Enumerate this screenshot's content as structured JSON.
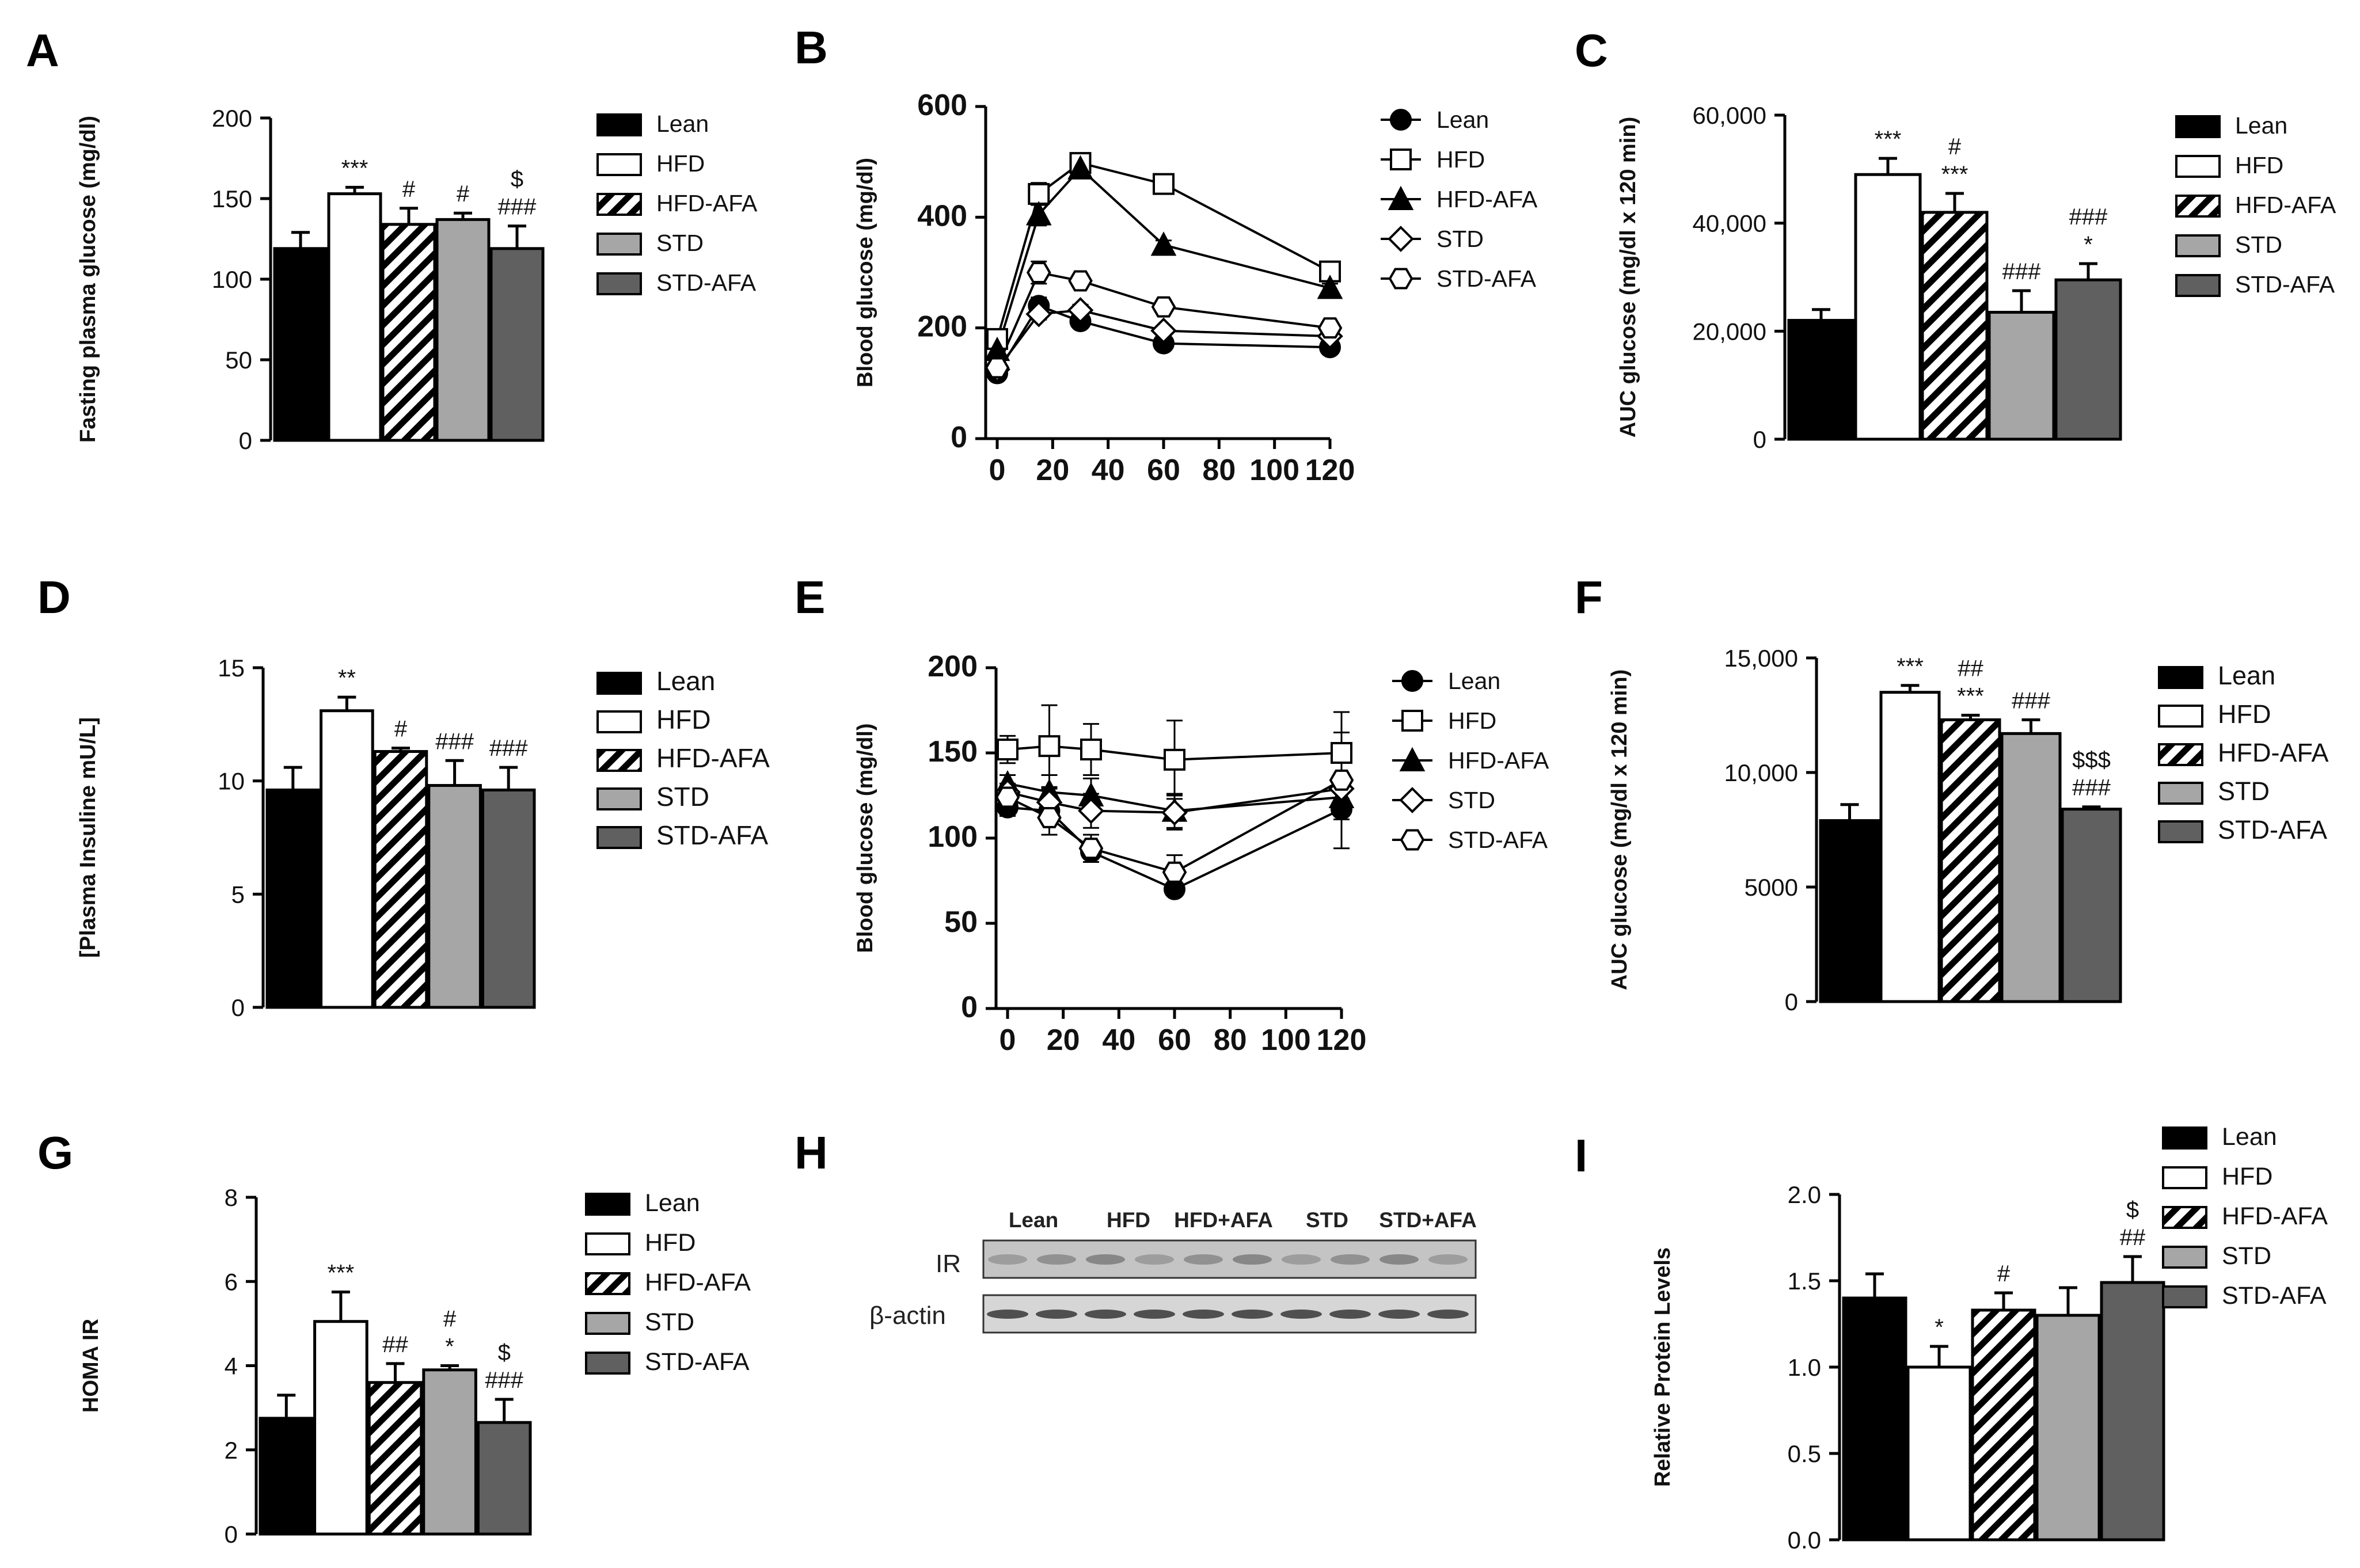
{
  "colors": {
    "Lean": "#000000",
    "HFD": "#ffffff",
    "HFD-AFA": "hatch",
    "STD": "#a6a6a6",
    "STD-AFA": "#606060"
  },
  "legend_bar": [
    "Lean",
    "HFD",
    "HFD-AFA",
    "STD",
    "STD-AFA"
  ],
  "chart_data": [
    {
      "panel": "A",
      "type": "bar",
      "ylabel": "Fasting plasma glucose (mg/dl)",
      "ylim": [
        0,
        200
      ],
      "yticks": [
        0,
        50,
        100,
        150,
        200
      ],
      "yticklabels": [
        "0",
        "50",
        "100",
        "150",
        "200"
      ],
      "categories": [
        "Lean",
        "HFD",
        "HFD-AFA",
        "STD",
        "STD-AFA"
      ],
      "values": [
        119,
        153,
        134,
        137,
        119
      ],
      "errors": [
        10,
        4,
        10,
        4,
        14
      ],
      "annotations": [
        [],
        [
          "***"
        ],
        [
          "#"
        ],
        [
          "#"
        ],
        [
          "$",
          "###"
        ]
      ]
    },
    {
      "panel": "B",
      "type": "line",
      "ylabel": "Blood glucose (mg/dl)",
      "ylim": [
        0,
        600
      ],
      "yticks": [
        0,
        200,
        400,
        600
      ],
      "yticklabels": [
        "0",
        "200",
        "400",
        "600"
      ],
      "xlim": [
        0,
        120
      ],
      "xticks": [
        0,
        20,
        40,
        60,
        80,
        100,
        120
      ],
      "series": [
        {
          "name": "Lean",
          "marker": "circle",
          "fill": "black",
          "x": [
            0,
            15,
            30,
            60,
            120
          ],
          "y": [
            118,
            240,
            212,
            172,
            165
          ],
          "err": [
            10,
            15,
            10,
            6,
            6
          ]
        },
        {
          "name": "HFD",
          "marker": "square",
          "fill": "white",
          "x": [
            0,
            15,
            30,
            60,
            120
          ],
          "y": [
            180,
            442,
            498,
            460,
            302
          ],
          "err": [
            8,
            20,
            10,
            10,
            10
          ]
        },
        {
          "name": "HFD-AFA",
          "marker": "triangle",
          "fill": "black",
          "x": [
            0,
            15,
            30,
            60,
            120
          ],
          "y": [
            160,
            405,
            488,
            350,
            272
          ],
          "err": [
            8,
            20,
            10,
            8,
            8
          ]
        },
        {
          "name": "STD",
          "marker": "diamond",
          "fill": "white",
          "x": [
            0,
            15,
            30,
            60,
            120
          ],
          "y": [
            125,
            225,
            232,
            195,
            185
          ],
          "err": [
            8,
            10,
            10,
            6,
            6
          ]
        },
        {
          "name": "STD-AFA",
          "marker": "hexagon",
          "fill": "white",
          "x": [
            0,
            15,
            30,
            60,
            120
          ],
          "y": [
            128,
            300,
            285,
            238,
            200
          ],
          "err": [
            8,
            20,
            10,
            8,
            6
          ]
        }
      ]
    },
    {
      "panel": "C",
      "type": "bar",
      "ylabel": "AUC glucose (mg/dl x 120 min)",
      "ylim": [
        0,
        60000
      ],
      "yticks": [
        0,
        20000,
        40000,
        60000
      ],
      "yticklabels": [
        "0",
        "20,000",
        "40,000",
        "60,000"
      ],
      "categories": [
        "Lean",
        "HFD",
        "HFD-AFA",
        "STD",
        "STD-AFA"
      ],
      "values": [
        22000,
        49000,
        42000,
        23500,
        29500
      ],
      "errors": [
        2000,
        3000,
        3500,
        4000,
        3000
      ],
      "annotations": [
        [],
        [
          "***"
        ],
        [
          "#",
          "***"
        ],
        [
          "###"
        ],
        [
          "###",
          "*"
        ]
      ]
    },
    {
      "panel": "D",
      "type": "bar",
      "ylabel": "[Plasma Insuline mU/L]",
      "ylim": [
        0,
        15
      ],
      "yticks": [
        0,
        5,
        10,
        15
      ],
      "yticklabels": [
        "0",
        "5",
        "10",
        "15"
      ],
      "categories": [
        "Lean",
        "HFD",
        "HFD-AFA",
        "STD",
        "STD-AFA"
      ],
      "values": [
        9.6,
        13.1,
        11.3,
        9.8,
        9.6
      ],
      "errors": [
        1.0,
        0.6,
        0.15,
        1.1,
        1.0
      ],
      "annotations": [
        [],
        [
          "**"
        ],
        [
          "#"
        ],
        [
          "###"
        ],
        [
          "###"
        ]
      ]
    },
    {
      "panel": "E",
      "type": "line",
      "ylabel": "Blood glucose (mg/dl)",
      "ylim": [
        0,
        200
      ],
      "yticks": [
        0,
        50,
        100,
        150,
        200
      ],
      "yticklabels": [
        "0",
        "50",
        "100",
        "150",
        "200"
      ],
      "xlim": [
        0,
        120
      ],
      "xticks": [
        0,
        20,
        40,
        60,
        80,
        100,
        120
      ],
      "series": [
        {
          "name": "Lean",
          "marker": "circle",
          "fill": "black",
          "x": [
            0,
            15,
            30,
            60,
            120
          ],
          "y": [
            118,
            116,
            92,
            70,
            117
          ],
          "err": [
            5,
            6,
            6,
            4,
            6
          ]
        },
        {
          "name": "HFD",
          "marker": "square",
          "fill": "white",
          "x": [
            0,
            15,
            30,
            60,
            120
          ],
          "y": [
            152,
            154,
            152,
            146,
            150
          ],
          "err": [
            8,
            24,
            15,
            23,
            12
          ]
        },
        {
          "name": "HFD-AFA",
          "marker": "triangle",
          "fill": "black",
          "x": [
            0,
            15,
            30,
            60,
            120
          ],
          "y": [
            132,
            127,
            125,
            116,
            124
          ],
          "err": [
            5,
            10,
            10,
            10,
            8
          ]
        },
        {
          "name": "STD",
          "marker": "diamond",
          "fill": "white",
          "x": [
            0,
            15,
            30,
            60,
            120
          ],
          "y": [
            127,
            121,
            116,
            115,
            129
          ],
          "err": [
            5,
            8,
            10,
            10,
            7
          ]
        },
        {
          "name": "STD-AFA",
          "marker": "hexagon",
          "fill": "white",
          "x": [
            0,
            15,
            30,
            60,
            120
          ],
          "y": [
            124,
            112,
            94,
            80,
            134
          ],
          "err": [
            5,
            10,
            8,
            10,
            40
          ]
        }
      ]
    },
    {
      "panel": "F",
      "type": "bar",
      "ylabel": "AUC glucose (mg/dl x 120 min)",
      "ylim": [
        0,
        15000
      ],
      "yticks": [
        0,
        5000,
        10000,
        15000
      ],
      "yticklabels": [
        "0",
        "5000",
        "10,000",
        "15,000"
      ],
      "categories": [
        "Lean",
        "HFD",
        "HFD-AFA",
        "STD",
        "STD-AFA"
      ],
      "values": [
        7900,
        13500,
        12300,
        11700,
        8400
      ],
      "errors": [
        700,
        300,
        200,
        600,
        100
      ],
      "annotations": [
        [],
        [
          "***"
        ],
        [
          "##",
          "***"
        ],
        [
          "###"
        ],
        [
          "$$$",
          "###"
        ]
      ]
    },
    {
      "panel": "G",
      "type": "bar",
      "ylabel": "HOMA IR",
      "ylim": [
        0,
        8
      ],
      "yticks": [
        0,
        2,
        4,
        6,
        8
      ],
      "yticklabels": [
        "0",
        "2",
        "4",
        "6",
        "8"
      ],
      "categories": [
        "Lean",
        "HFD",
        "HFD-AFA",
        "STD",
        "STD-AFA"
      ],
      "values": [
        2.75,
        5.05,
        3.6,
        3.9,
        2.65
      ],
      "errors": [
        0.55,
        0.7,
        0.45,
        0.1,
        0.55
      ],
      "annotations": [
        [],
        [
          "***"
        ],
        [
          "##"
        ],
        [
          "#",
          "*"
        ],
        [
          "$",
          "###"
        ]
      ]
    },
    {
      "panel": "I",
      "type": "bar",
      "ylabel": "Relative Protein Levels",
      "ylim": [
        0,
        2.0
      ],
      "yticks": [
        0,
        0.5,
        1.0,
        1.5,
        2.0
      ],
      "yticklabels": [
        "0.0",
        "0.5",
        "1.0",
        "1.5",
        "2.0"
      ],
      "categories": [
        "Lean",
        "HFD",
        "HFD-AFA",
        "STD",
        "STD-AFA"
      ],
      "values": [
        1.4,
        1.0,
        1.33,
        1.3,
        1.49
      ],
      "errors": [
        0.14,
        0.12,
        0.1,
        0.16,
        0.15
      ],
      "annotations": [
        [],
        [
          "*"
        ],
        [
          "#"
        ],
        [],
        [
          "$",
          "##"
        ]
      ]
    }
  ],
  "blot": {
    "panel": "H",
    "groups": [
      "Lean",
      "HFD",
      "HFD+AFA",
      "STD",
      "STD+AFA"
    ],
    "rows": [
      "IR",
      "β-actin"
    ]
  }
}
